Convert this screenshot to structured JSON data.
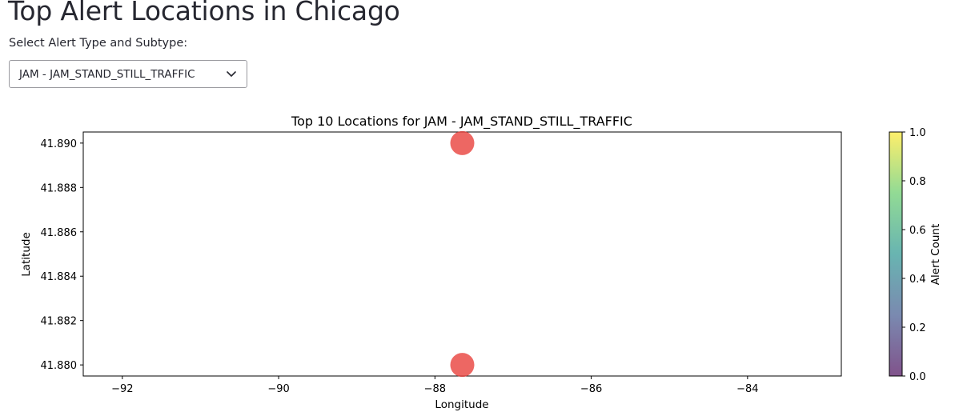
{
  "page": {
    "title": "Top Alert Locations in Chicago"
  },
  "selector": {
    "label": "Select Alert Type and Subtype:",
    "selected": "JAM - JAM_STAND_STILL_TRAFFIC"
  },
  "chart_data": {
    "type": "scatter",
    "title": "Top 10 Locations for JAM - JAM_STAND_STILL_TRAFFIC",
    "xlabel": "Longitude",
    "ylabel": "Latitude",
    "xlim": [
      -92.5,
      -82.8
    ],
    "ylim": [
      41.8795,
      41.8905
    ],
    "x_ticks": [
      -92,
      -90,
      -88,
      -86,
      -84
    ],
    "x_tick_labels": [
      "−92",
      "−90",
      "−88",
      "−86",
      "−84"
    ],
    "y_ticks": [
      41.88,
      41.882,
      41.884,
      41.886,
      41.888,
      41.89
    ],
    "y_tick_labels": [
      "41.880",
      "41.882",
      "41.884",
      "41.886",
      "41.888",
      "41.890"
    ],
    "points": [
      {
        "x": -87.65,
        "y": 41.89
      },
      {
        "x": -87.65,
        "y": 41.88
      }
    ],
    "point_color": "#e8413c",
    "grid": false,
    "colorbar": {
      "label": "Alert Count",
      "range": [
        0.0,
        1.0
      ],
      "ticks": [
        0.0,
        0.2,
        0.4,
        0.6,
        0.8,
        1.0
      ],
      "tick_labels": [
        "0.0",
        "0.2",
        "0.4",
        "0.6",
        "0.8",
        "1.0"
      ],
      "colormap": "viridis"
    }
  }
}
